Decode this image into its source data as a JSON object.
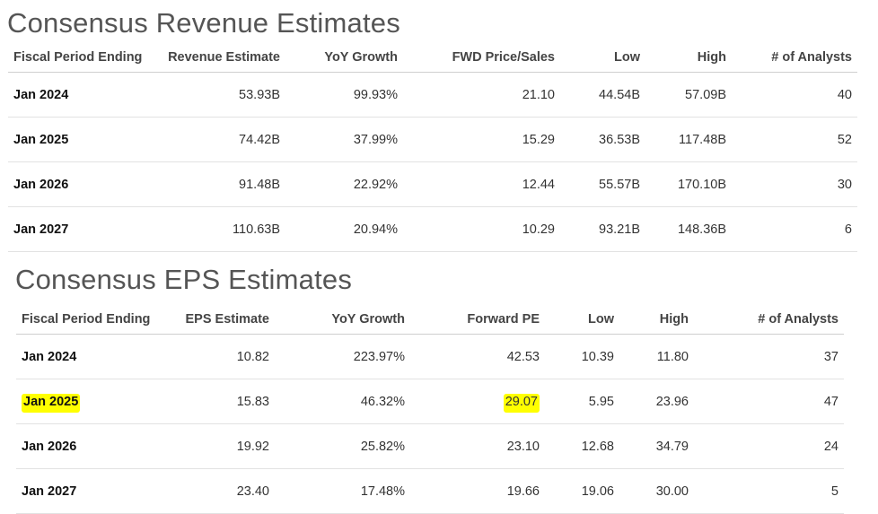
{
  "revenue": {
    "title": "Consensus Revenue Estimates",
    "headers": [
      "Fiscal Period Ending",
      "Revenue Estimate",
      "YoY Growth",
      "FWD Price/Sales",
      "Low",
      "High",
      "# of Analysts"
    ],
    "rows": [
      {
        "period": "Jan 2024",
        "estimate": "53.93B",
        "yoy": "99.93%",
        "ratio": "21.10",
        "low": "44.54B",
        "high": "57.09B",
        "analysts": "40"
      },
      {
        "period": "Jan 2025",
        "estimate": "74.42B",
        "yoy": "37.99%",
        "ratio": "15.29",
        "low": "36.53B",
        "high": "117.48B",
        "analysts": "52"
      },
      {
        "period": "Jan 2026",
        "estimate": "91.48B",
        "yoy": "22.92%",
        "ratio": "12.44",
        "low": "55.57B",
        "high": "170.10B",
        "analysts": "30"
      },
      {
        "period": "Jan 2027",
        "estimate": "110.63B",
        "yoy": "20.94%",
        "ratio": "10.29",
        "low": "93.21B",
        "high": "148.36B",
        "analysts": "6"
      }
    ]
  },
  "eps": {
    "title": "Consensus EPS Estimates",
    "headers": [
      "Fiscal Period Ending",
      "EPS Estimate",
      "YoY Growth",
      "Forward PE",
      "Low",
      "High",
      "# of Analysts"
    ],
    "rows": [
      {
        "period": "Jan 2024",
        "estimate": "10.82",
        "yoy": "223.97%",
        "ratio": "42.53",
        "low": "10.39",
        "high": "11.80",
        "analysts": "37"
      },
      {
        "period": "Jan 2025",
        "estimate": "15.83",
        "yoy": "46.32%",
        "ratio": "29.07",
        "low": "5.95",
        "high": "23.96",
        "analysts": "47"
      },
      {
        "period": "Jan 2026",
        "estimate": "19.92",
        "yoy": "25.82%",
        "ratio": "23.10",
        "low": "12.68",
        "high": "34.79",
        "analysts": "24"
      },
      {
        "period": "Jan 2027",
        "estimate": "23.40",
        "yoy": "17.48%",
        "ratio": "19.66",
        "low": "19.06",
        "high": "30.00",
        "analysts": "5"
      }
    ]
  },
  "highlight_color": "#ffff00"
}
